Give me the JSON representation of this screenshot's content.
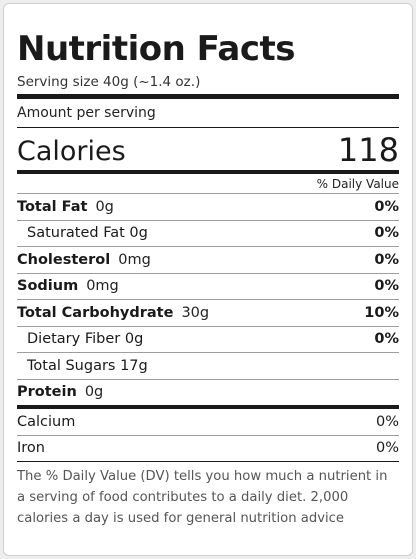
{
  "title": "Nutrition Facts",
  "serving_size": "Serving size 40g (~1.4 oz.)",
  "amount_per_serving": "Amount per serving",
  "calories": {
    "label": "Calories",
    "value": "118"
  },
  "daily_value_header": "% Daily Value",
  "nutrients": [
    {
      "name": "Total Fat",
      "amount": "0g",
      "dv": "0%"
    },
    {
      "name": "Saturated Fat 0g",
      "dv": "0%"
    },
    {
      "name": "Cholesterol",
      "amount": "0mg",
      "dv": "0%"
    },
    {
      "name": "Sodium",
      "amount": "0mg",
      "dv": "0%"
    },
    {
      "name": "Total Carbohydrate",
      "amount": "30g",
      "dv": "10%"
    },
    {
      "name": "Dietary Fiber 0g",
      "dv": "0%"
    },
    {
      "name": "Total Sugars 17g"
    },
    {
      "name": "Protein",
      "amount": "0g"
    }
  ],
  "minerals": [
    {
      "name": "Calcium",
      "dv": "0%"
    },
    {
      "name": "Iron",
      "dv": "0%"
    }
  ],
  "footnote": "The % Daily Value (DV) tells you how much a nutrient in a serving of food contributes to a daily diet. 2,000 calories a day is used for general nutrition advice"
}
